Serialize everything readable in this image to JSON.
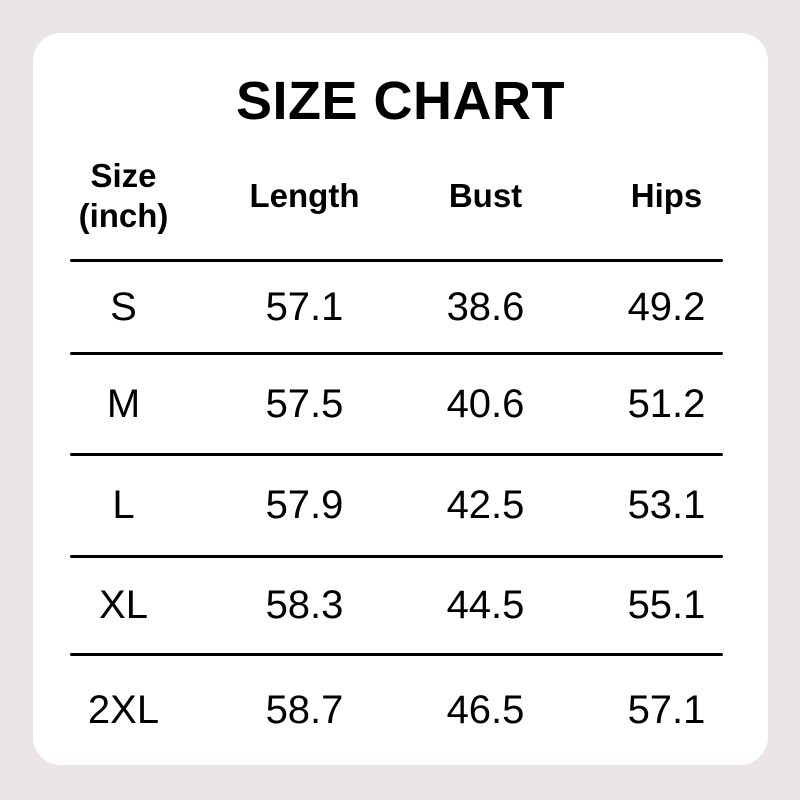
{
  "title": "SIZE CHART",
  "colors": {
    "page_background": "#ece5e7",
    "card_background": "#ffffff",
    "text": "#000000",
    "divider": "#000000"
  },
  "chart_data": {
    "type": "table",
    "title": "SIZE CHART",
    "unit": "inch",
    "columns": [
      "Size (inch)",
      "Length",
      "Bust",
      "Hips"
    ],
    "header": {
      "size_line1": "Size",
      "size_line2": "(inch)",
      "length": "Length",
      "bust": "Bust",
      "hips": "Hips"
    },
    "rows": [
      {
        "size": "S",
        "length": "57.1",
        "bust": "38.6",
        "hips": "49.2"
      },
      {
        "size": "M",
        "length": "57.5",
        "bust": "40.6",
        "hips": "51.2"
      },
      {
        "size": "L",
        "length": "57.9",
        "bust": "42.5",
        "hips": "53.1"
      },
      {
        "size": "XL",
        "length": "58.3",
        "bust": "44.5",
        "hips": "55.1"
      },
      {
        "size": "2XL",
        "length": "58.7",
        "bust": "46.5",
        "hips": "57.1"
      }
    ]
  }
}
